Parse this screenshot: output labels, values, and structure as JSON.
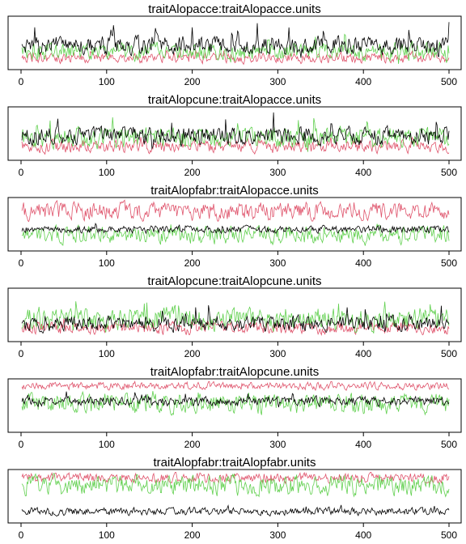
{
  "figure": {
    "type": "trace-plot-grid",
    "iterations": 500,
    "series_colors": [
      "#000000",
      "#df536b",
      "#61d04f"
    ],
    "x_ticks": [
      0,
      100,
      200,
      300,
      400,
      500
    ]
  },
  "chart_data": [
    {
      "type": "line",
      "title": "traitAlopacce:traitAlopacce.units",
      "xlim": [
        0,
        500
      ],
      "x_ticks": [
        0,
        100,
        200,
        300,
        400,
        500
      ],
      "series_profile": [
        {
          "color": "#000000",
          "level": 0.45,
          "spread": 0.35,
          "spike": 0.4
        },
        {
          "color": "#df536b",
          "level": 0.15,
          "spread": 0.2,
          "spike": 0.15
        },
        {
          "color": "#61d04f",
          "level": 0.3,
          "spread": 0.35,
          "spike": 0.35
        }
      ]
    },
    {
      "type": "line",
      "title": "traitAlopcune:traitAlopacce.units",
      "xlim": [
        0,
        500
      ],
      "x_ticks": [
        0,
        100,
        200,
        300,
        400,
        500
      ],
      "series_profile": [
        {
          "color": "#000000",
          "level": 0.45,
          "spread": 0.35,
          "spike": 0.4
        },
        {
          "color": "#df536b",
          "level": 0.2,
          "spread": 0.25,
          "spike": 0.15
        },
        {
          "color": "#61d04f",
          "level": 0.4,
          "spread": 0.4,
          "spike": 0.4
        }
      ]
    },
    {
      "type": "line",
      "title": "traitAlopfabr:traitAlopacce.units",
      "xlim": [
        0,
        500
      ],
      "x_ticks": [
        0,
        100,
        200,
        300,
        400,
        500
      ],
      "series_profile": [
        {
          "color": "#000000",
          "level": 0.38,
          "spread": 0.15,
          "spike": 0.1
        },
        {
          "color": "#df536b",
          "level": 0.8,
          "spread": 0.35,
          "spike": 0.1
        },
        {
          "color": "#61d04f",
          "level": 0.25,
          "spread": 0.35,
          "spike": 0.15
        }
      ]
    },
    {
      "type": "line",
      "title": "traitAlopcune:traitAlopcune.units",
      "xlim": [
        0,
        500
      ],
      "x_ticks": [
        0,
        100,
        200,
        300,
        400,
        500
      ],
      "series_profile": [
        {
          "color": "#000000",
          "level": 0.3,
          "spread": 0.3,
          "spike": 0.35
        },
        {
          "color": "#df536b",
          "level": 0.2,
          "spread": 0.25,
          "spike": 0.15
        },
        {
          "color": "#61d04f",
          "level": 0.4,
          "spread": 0.45,
          "spike": 0.45
        }
      ]
    },
    {
      "type": "line",
      "title": "traitAlopfabr:traitAlopcune.units",
      "xlim": [
        0,
        500
      ],
      "x_ticks": [
        0,
        100,
        200,
        300,
        400,
        500
      ],
      "series_profile": [
        {
          "color": "#000000",
          "level": 0.6,
          "spread": 0.18,
          "spike": 0.15
        },
        {
          "color": "#df536b",
          "level": 0.95,
          "spread": 0.15,
          "spike": 0.05
        },
        {
          "color": "#61d04f",
          "level": 0.55,
          "spread": 0.4,
          "spike": 0.2
        }
      ]
    },
    {
      "type": "line",
      "title": "traitAlopfabr:traitAlopfabr.units",
      "xlim": [
        0,
        500
      ],
      "x_ticks": [
        0,
        100,
        200,
        300,
        400,
        500
      ],
      "series_profile": [
        {
          "color": "#000000",
          "level": 0.15,
          "spread": 0.15,
          "spike": 0.1
        },
        {
          "color": "#df536b",
          "level": 0.92,
          "spread": 0.2,
          "spike": 0.05
        },
        {
          "color": "#61d04f",
          "level": 0.75,
          "spread": 0.4,
          "spike": 0.15
        }
      ]
    }
  ]
}
